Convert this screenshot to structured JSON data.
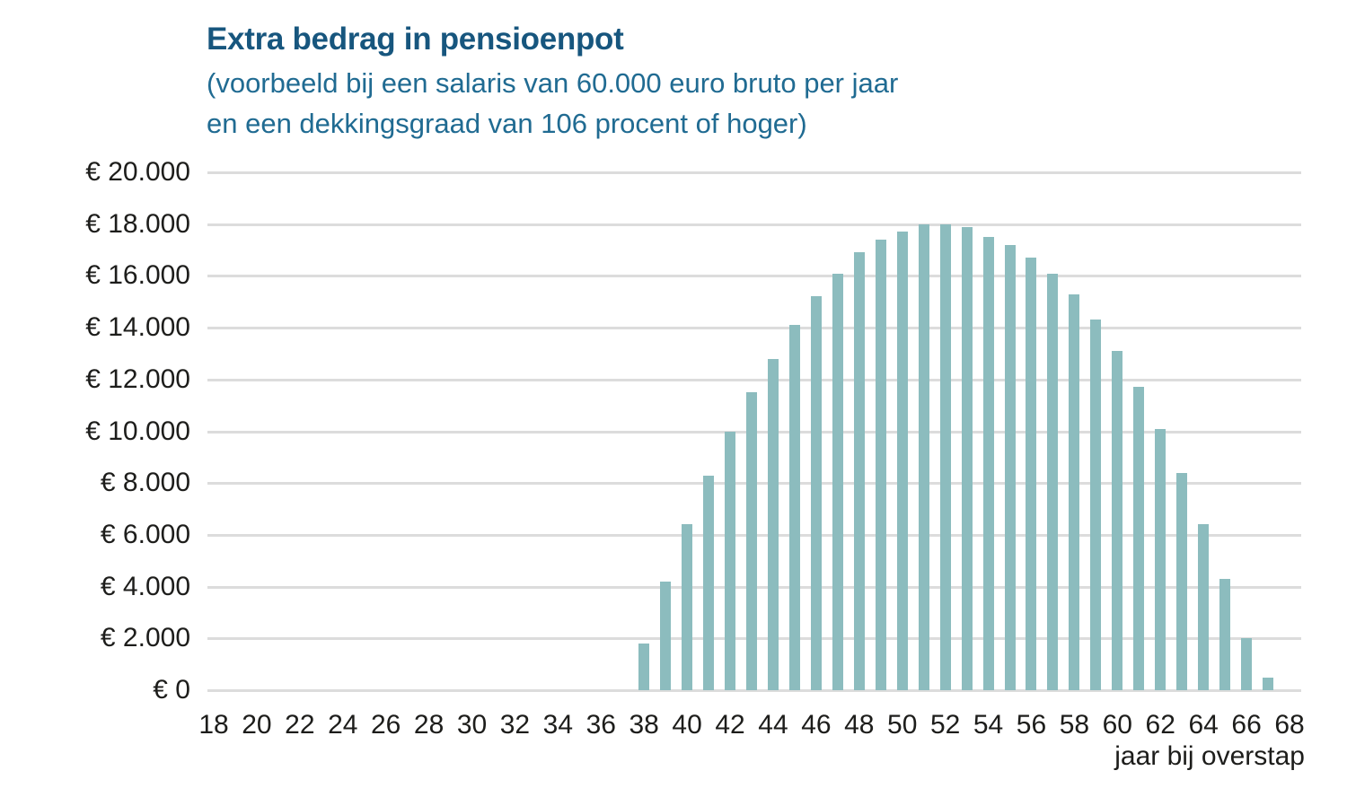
{
  "header": {
    "title": "Extra bedrag in pensioenpot",
    "subtitle_lines": [
      "(voorbeeld bij een salaris van 60.000 euro bruto per jaar",
      "en een dekkingsgraad van 106 procent of hoger)"
    ]
  },
  "colors": {
    "title": "#17567E",
    "subtitle": "#206B92",
    "bar": "#8CBCBE",
    "gridline": "#DCDCDC",
    "axis_text": "#1D1D1B",
    "background": "#FFFFFF"
  },
  "chart_data": {
    "type": "bar",
    "title": "Extra bedrag in pensioenpot",
    "subtitle": "(voorbeeld bij een salaris van 60.000 euro bruto per jaar en een dekkingsgraad van 106 procent of hoger)",
    "xlabel": "jaar bij overstap",
    "ylabel": "",
    "grid": true,
    "legend": false,
    "bar_color": "#8CBCBE",
    "xlim": [
      17.7,
      68.8
    ],
    "ylim": [
      0,
      20000
    ],
    "x": [
      38,
      39,
      40,
      41,
      42,
      43,
      44,
      45,
      46,
      47,
      48,
      49,
      50,
      51,
      52,
      53,
      54,
      55,
      56,
      57,
      58,
      59,
      60,
      61,
      62,
      63,
      64,
      65,
      66,
      67
    ],
    "values": [
      1800,
      4200,
      6400,
      8300,
      10000,
      11500,
      12800,
      14100,
      15200,
      16100,
      16900,
      17400,
      17700,
      18000,
      18000,
      17900,
      17500,
      17200,
      16700,
      16100,
      15300,
      14300,
      13100,
      11700,
      10100,
      8400,
      6400,
      4300,
      2000,
      500
    ],
    "x_ticks": [
      "18",
      "20",
      "22",
      "24",
      "26",
      "28",
      "30",
      "32",
      "34",
      "36",
      "38",
      "40",
      "42",
      "44",
      "46",
      "48",
      "50",
      "52",
      "54",
      "56",
      "58",
      "60",
      "62",
      "64",
      "66",
      "68"
    ],
    "y_ticks": [
      {
        "value": 20000,
        "label": "€ 20.000"
      },
      {
        "value": 18000,
        "label": "€ 18.000"
      },
      {
        "value": 16000,
        "label": "€ 16.000"
      },
      {
        "value": 14000,
        "label": "€ 14.000"
      },
      {
        "value": 12000,
        "label": "€ 12.000"
      },
      {
        "value": 10000,
        "label": "€ 10.000"
      },
      {
        "value": 8000,
        "label": "€ 8.000"
      },
      {
        "value": 6000,
        "label": "€ 6.000"
      },
      {
        "value": 4000,
        "label": "€ 4.000"
      },
      {
        "value": 2000,
        "label": "€ 2.000"
      },
      {
        "value": 0,
        "label": "€ 0"
      }
    ]
  }
}
